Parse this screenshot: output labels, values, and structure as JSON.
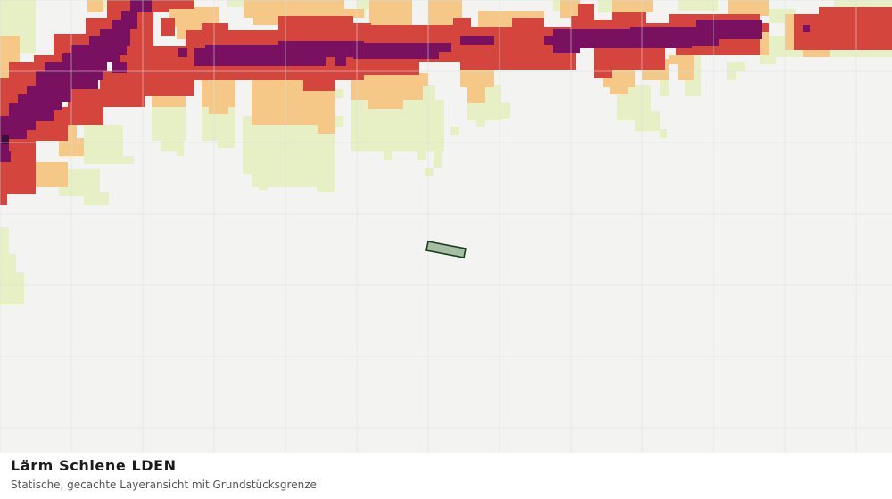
{
  "caption": {
    "title": "Lärm Schiene LDEN",
    "subtitle": "Statische, gecachte Layeransicht mit Grundstücksgrenze"
  },
  "map": {
    "background_color": "#f3f4f2",
    "grid_color": "#dcdedc",
    "noise_class_colors": {
      "lowest": "#e6f0c4",
      "low": "#f6c887",
      "high": "#d4463d",
      "highest": "#7a1060",
      "peak": "#3f0d3a"
    },
    "parcel": {
      "fill_color": "#a4bfa4",
      "stroke_color": "#173d1f"
    }
  }
}
